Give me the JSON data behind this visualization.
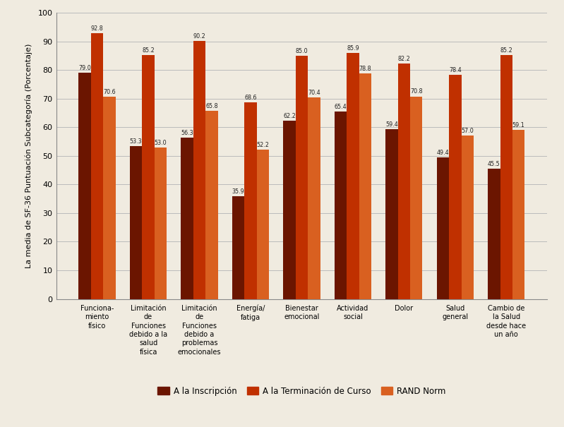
{
  "categories": [
    "Funciona-\nmiento\nfísico",
    "Limitación\nde\nFunciones\ndebido a la\nsalud\nfísica",
    "Limitación\nde\nFunciones\ndebido a\nproblemas\nemocionales",
    "Energía/\nfatiga",
    "Bienestar\nemocional",
    "Actividad\nsocial",
    "Dolor",
    "Salud\ngeneral",
    "Cambio de\nla Salud\ndesde hace\nun año"
  ],
  "series": [
    {
      "name": "A la Inscripción",
      "color": "#6B1500",
      "values": [
        79.0,
        53.3,
        56.3,
        35.9,
        62.2,
        65.4,
        59.4,
        49.4,
        45.5
      ]
    },
    {
      "name": "A la Terminación de Curso",
      "color": "#C03000",
      "values": [
        92.8,
        85.2,
        90.2,
        68.6,
        85.0,
        85.9,
        82.2,
        78.4,
        85.2
      ]
    },
    {
      "name": "RAND Norm",
      "color": "#D96020",
      "values": [
        70.6,
        53.0,
        65.8,
        52.2,
        70.4,
        78.8,
        70.8,
        57.0,
        59.1
      ]
    }
  ],
  "ylabel": "La media de SF-36 Puntuación Subcategoría (Porcentaje)",
  "ylim": [
    0,
    100
  ],
  "yticks": [
    0,
    10,
    20,
    30,
    40,
    50,
    60,
    70,
    80,
    90,
    100
  ],
  "background_color": "#F0EBE0",
  "grid_color": "#BBBBBB",
  "bar_width": 0.24
}
